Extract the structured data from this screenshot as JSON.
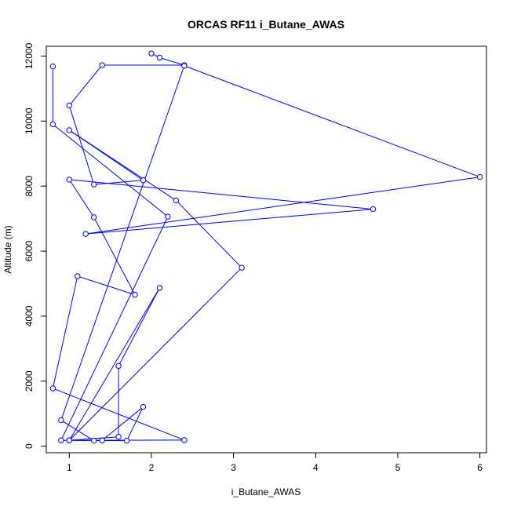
{
  "chart_data": {
    "type": "line",
    "title": "ORCAS RF11 i_Butane_AWAS",
    "xlabel": "i_Butane_AWAS",
    "ylabel": "Altitude (m)",
    "xlim": [
      0.72,
      6.08
    ],
    "ylim": [
      -200,
      12300
    ],
    "xticks": [
      1,
      2,
      3,
      4,
      5,
      6
    ],
    "yticks": [
      0,
      2000,
      4000,
      6000,
      8000,
      10000,
      12000
    ],
    "grid": false,
    "legend": "none",
    "series": [
      {
        "color": "#0000ff",
        "marker": "open-circle",
        "points": [
          [
            2.0,
            12080
          ],
          [
            2.1,
            11950
          ],
          [
            2.4,
            11720
          ],
          [
            1.4,
            11720
          ],
          [
            1.0,
            10480
          ],
          [
            1.3,
            8050
          ],
          [
            1.9,
            8180
          ],
          [
            1.0,
            9720
          ],
          [
            2.3,
            7560
          ],
          [
            3.1,
            5490
          ],
          [
            1.0,
            180
          ],
          [
            2.1,
            4870
          ],
          [
            1.6,
            2470
          ],
          [
            1.6,
            290
          ],
          [
            1.0,
            180
          ],
          [
            1.7,
            170
          ],
          [
            1.9,
            1210
          ],
          [
            1.4,
            180
          ],
          [
            1.3,
            170
          ],
          [
            0.9,
            800
          ],
          [
            2.4,
            11700
          ],
          [
            6.0,
            8280
          ],
          [
            1.2,
            6530
          ],
          [
            4.7,
            7290
          ],
          [
            1.0,
            8200
          ],
          [
            1.3,
            7040
          ],
          [
            1.8,
            4660
          ],
          [
            1.1,
            5230
          ],
          [
            0.8,
            1780
          ],
          [
            2.4,
            190
          ],
          [
            0.9,
            180
          ],
          [
            2.2,
            7060
          ],
          [
            0.8,
            9900
          ],
          [
            0.8,
            11680
          ]
        ]
      }
    ]
  }
}
